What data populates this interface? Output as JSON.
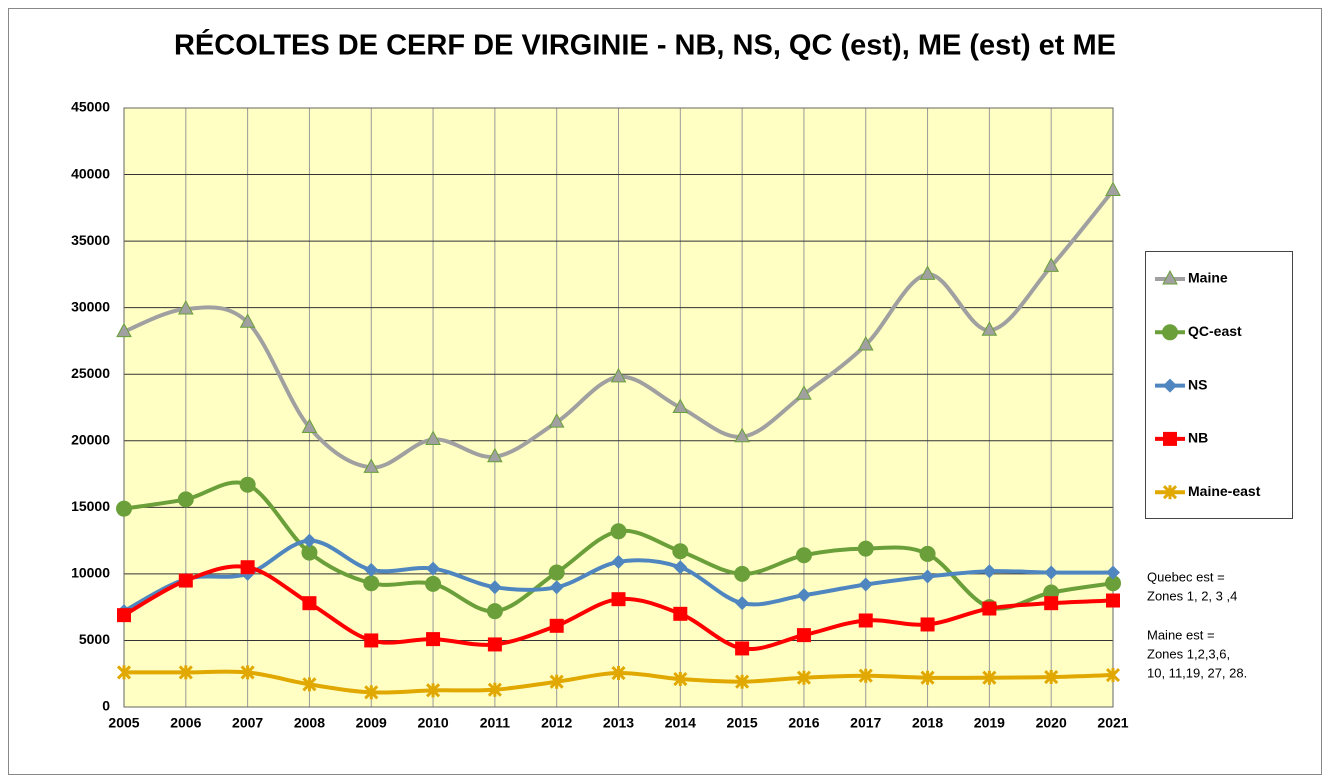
{
  "chart_data": {
    "type": "line",
    "title": "RÉCOLTES DE CERF DE VIRGINIE - NB, NS, QC (est), ME (est) et ME",
    "x": [
      2005,
      2006,
      2007,
      2008,
      2009,
      2010,
      2011,
      2012,
      2013,
      2014,
      2015,
      2016,
      2017,
      2018,
      2019,
      2020,
      2021
    ],
    "xlim": [
      2005,
      2021
    ],
    "xticks": [
      2005,
      2006,
      2007,
      2008,
      2009,
      2010,
      2011,
      2012,
      2013,
      2014,
      2015,
      2016,
      2017,
      2018,
      2019,
      2020,
      2021
    ],
    "ylim": [
      0,
      45000
    ],
    "yticks": [
      0,
      5000,
      10000,
      15000,
      20000,
      25000,
      30000,
      35000,
      40000,
      45000
    ],
    "grid": true,
    "smooth": true,
    "legend": "right",
    "series": [
      {
        "name": "Maine",
        "color": "#a0a0a0",
        "marker": "triangle",
        "values": [
          28200,
          29900,
          28900,
          21000,
          18000,
          20100,
          18800,
          21400,
          24800,
          22500,
          20300,
          23500,
          27200,
          32500,
          28300,
          33100,
          38800
        ]
      },
      {
        "name": "QC-east",
        "color": "#6a9f3a",
        "marker": "circle",
        "values": [
          14900,
          15600,
          16700,
          11600,
          9300,
          9250,
          7200,
          10100,
          13200,
          11700,
          10000,
          11400,
          11900,
          11500,
          7500,
          8600,
          9300
        ]
      },
      {
        "name": "NS",
        "color": "#4f86c0",
        "marker": "diamond",
        "values": [
          7200,
          9600,
          10000,
          12500,
          10300,
          10400,
          9000,
          9000,
          10900,
          10500,
          7800,
          8400,
          9200,
          9800,
          10200,
          10100,
          10100
        ]
      },
      {
        "name": "NB",
        "color": "#ff0000",
        "marker": "square",
        "values": [
          6900,
          9500,
          10500,
          7800,
          5000,
          5100,
          4700,
          6100,
          8100,
          7000,
          4400,
          5400,
          6500,
          6200,
          7400,
          7800,
          8000
        ]
      },
      {
        "name": "Maine-east",
        "color": "#e0a800",
        "marker": "cross",
        "values": [
          2600,
          2600,
          2600,
          1700,
          1100,
          1250,
          1300,
          1900,
          2550,
          2100,
          1900,
          2200,
          2350,
          2200,
          2200,
          2250,
          2400
        ]
      }
    ],
    "annotations": [
      [
        "Quebec est =",
        "Zones 1, 2, 3 ,4"
      ],
      [
        "Maine est =",
        "Zones 1,2,3,6,",
        "10, 11,19, 27, 28."
      ]
    ]
  }
}
